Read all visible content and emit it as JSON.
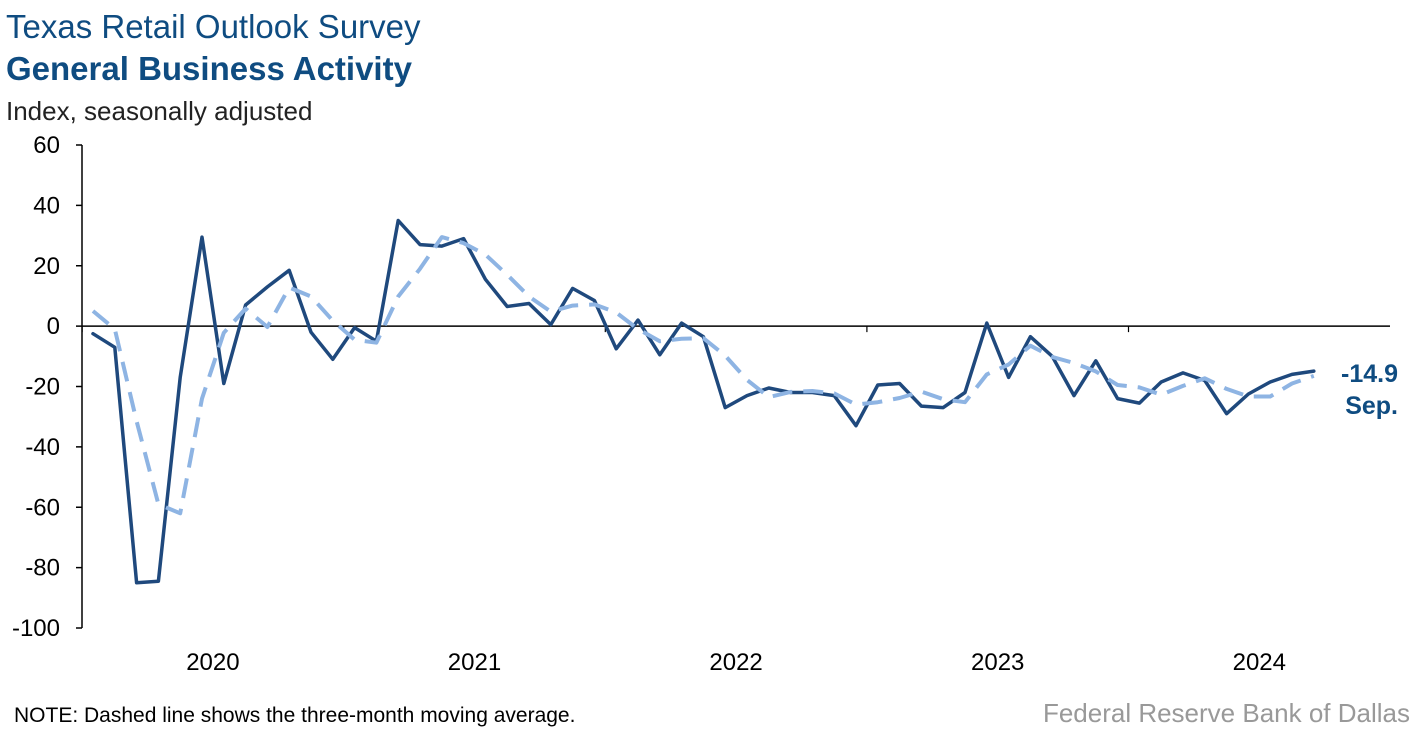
{
  "chart_data": {
    "type": "line",
    "title": "Texas Retail Outlook Survey",
    "subtitle": "General Business Activity",
    "ylabel": "Index, seasonally adjusted",
    "xlabel": "",
    "ylim": [
      -100,
      60
    ],
    "yticks": [
      60,
      40,
      20,
      0,
      -20,
      -40,
      -60,
      -80,
      -100
    ],
    "x_start": "2020-01",
    "x_tick_labels": [
      "2020",
      "2021",
      "2022",
      "2023",
      "2024"
    ],
    "x": [
      "Jan 2020",
      "Feb 2020",
      "Mar 2020",
      "Apr 2020",
      "May 2020",
      "Jun 2020",
      "Jul 2020",
      "Aug 2020",
      "Sep 2020",
      "Oct 2020",
      "Nov 2020",
      "Dec 2020",
      "Jan 2021",
      "Feb 2021",
      "Mar 2021",
      "Apr 2021",
      "May 2021",
      "Jun 2021",
      "Jul 2021",
      "Aug 2021",
      "Sep 2021",
      "Oct 2021",
      "Nov 2021",
      "Dec 2021",
      "Jan 2022",
      "Feb 2022",
      "Mar 2022",
      "Apr 2022",
      "May 2022",
      "Jun 2022",
      "Jul 2022",
      "Aug 2022",
      "Sep 2022",
      "Oct 2022",
      "Nov 2022",
      "Dec 2022",
      "Jan 2023",
      "Feb 2023",
      "Mar 2023",
      "Apr 2023",
      "May 2023",
      "Jun 2023",
      "Jul 2023",
      "Aug 2023",
      "Sep 2023",
      "Oct 2023",
      "Nov 2023",
      "Dec 2023",
      "Jan 2024",
      "Feb 2024",
      "Mar 2024",
      "Apr 2024",
      "May 2024",
      "Jun 2024",
      "Jul 2024",
      "Aug 2024",
      "Sep 2024",
      "Oct 2024",
      "Nov 2024",
      "Dec 2024"
    ],
    "series": [
      {
        "name": "",
        "style": "solid",
        "color": "#1f497d",
        "values": [
          -2.5,
          -7,
          -85,
          -84.5,
          -17,
          29.5,
          -19,
          7,
          13,
          18.5,
          -2,
          -11,
          -0.5,
          -5,
          35,
          27,
          26.5,
          29,
          15.5,
          6.5,
          7.5,
          0.5,
          12.5,
          8.5,
          -7.5,
          2,
          -9.5,
          1,
          -3.5,
          -27,
          -23,
          -20.5,
          -22,
          -22,
          -23,
          -33,
          -19.5,
          -19,
          -26.5,
          -27,
          -22,
          1,
          -17,
          -3.5,
          -10,
          -23,
          -11.5,
          -24,
          -25.5,
          -18.5,
          -15.5,
          -18,
          -29,
          -22.5,
          -18.5,
          -16,
          -14.9,
          null,
          null,
          null
        ]
      },
      {
        "name": "",
        "style": "dashed",
        "color": "#8eb4e3",
        "values": [
          5,
          -1,
          -31.5,
          -59,
          -62,
          -24,
          -2.2,
          5.8,
          -0.3,
          12.8,
          9.8,
          1.8,
          -4.5,
          -5.5,
          9.8,
          19,
          29.5,
          27.5,
          23.7,
          17,
          9.8,
          4.8,
          6.8,
          7.2,
          4.5,
          -1,
          -5,
          -4.2,
          -4,
          -9.8,
          -17.8,
          -23.5,
          -21.8,
          -21.5,
          -22.3,
          -26,
          -25.2,
          -23.8,
          -21.7,
          -24.2,
          -25.2,
          -16,
          -12.7,
          -6.5,
          -10.2,
          -12.2,
          -15,
          -19.5,
          -20.3,
          -22.7,
          -19.8,
          -17.3,
          -20.8,
          -23.3,
          -23.3,
          -19,
          -16.5,
          null,
          null,
          null
        ]
      }
    ],
    "end_label_value": "-14.9",
    "end_label_month": "Sep.",
    "zero_line": true,
    "grid": false
  },
  "note": "NOTE: Dashed line shows the three-month moving average.",
  "source": "Federal Reserve Bank of Dallas"
}
